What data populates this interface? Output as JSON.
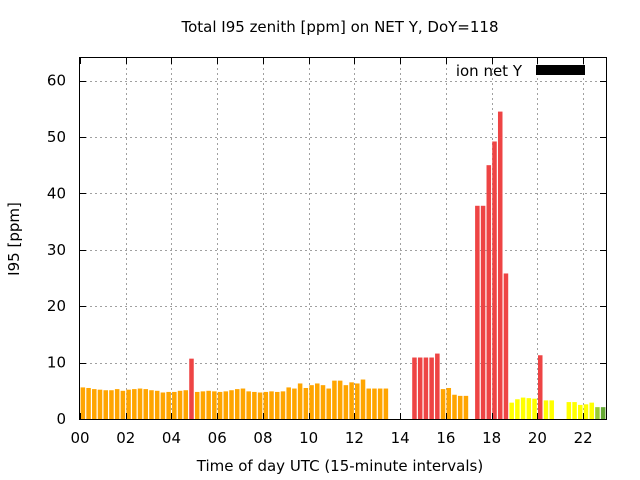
{
  "chart_data": {
    "type": "bar",
    "title": "Total I95 zenith [ppm] on NET Y, DoY=118",
    "xlabel": "Time of day UTC (15-minute intervals)",
    "ylabel": "I95 [ppm]",
    "xlim": [
      0,
      23.0
    ],
    "ylim": [
      0,
      64
    ],
    "xticks": [
      "00",
      "02",
      "04",
      "06",
      "08",
      "10",
      "12",
      "14",
      "16",
      "18",
      "20",
      "22"
    ],
    "yticks": [
      0,
      10,
      20,
      30,
      40,
      50,
      60
    ],
    "grid": true,
    "legend": {
      "position": "top-right",
      "entries": [
        {
          "label": "ion net Y",
          "color": "#000000"
        }
      ]
    },
    "series": [
      {
        "bar_width_hours": 0.25,
        "bars": [
          {
            "t": 0.125,
            "v": 5.6,
            "color": "#ffa500"
          },
          {
            "t": 0.375,
            "v": 5.5,
            "color": "#ffa500"
          },
          {
            "t": 0.625,
            "v": 5.3,
            "color": "#ffa500"
          },
          {
            "t": 0.875,
            "v": 5.2,
            "color": "#ffa500"
          },
          {
            "t": 1.125,
            "v": 5.1,
            "color": "#ffa500"
          },
          {
            "t": 1.375,
            "v": 5.1,
            "color": "#ffa500"
          },
          {
            "t": 1.625,
            "v": 5.3,
            "color": "#ffa500"
          },
          {
            "t": 1.875,
            "v": 5.0,
            "color": "#ffa500"
          },
          {
            "t": 2.125,
            "v": 5.2,
            "color": "#ffa500"
          },
          {
            "t": 2.375,
            "v": 5.3,
            "color": "#ffa500"
          },
          {
            "t": 2.625,
            "v": 5.4,
            "color": "#ffa500"
          },
          {
            "t": 2.875,
            "v": 5.3,
            "color": "#ffa500"
          },
          {
            "t": 3.125,
            "v": 5.1,
            "color": "#ffa500"
          },
          {
            "t": 3.375,
            "v": 5.0,
            "color": "#ffa500"
          },
          {
            "t": 3.625,
            "v": 4.7,
            "color": "#ffa500"
          },
          {
            "t": 3.875,
            "v": 4.8,
            "color": "#ffa500"
          },
          {
            "t": 4.125,
            "v": 4.8,
            "color": "#ffa500"
          },
          {
            "t": 4.375,
            "v": 5.0,
            "color": "#ffa500"
          },
          {
            "t": 4.625,
            "v": 5.1,
            "color": "#ffa500"
          },
          {
            "t": 4.875,
            "v": 10.7,
            "color": "#ee4444"
          },
          {
            "t": 5.125,
            "v": 4.8,
            "color": "#ffa500"
          },
          {
            "t": 5.375,
            "v": 4.9,
            "color": "#ffa500"
          },
          {
            "t": 5.625,
            "v": 5.0,
            "color": "#ffa500"
          },
          {
            "t": 5.875,
            "v": 4.9,
            "color": "#ffa500"
          },
          {
            "t": 6.125,
            "v": 4.8,
            "color": "#ffa500"
          },
          {
            "t": 6.375,
            "v": 4.9,
            "color": "#ffa500"
          },
          {
            "t": 6.625,
            "v": 5.1,
            "color": "#ffa500"
          },
          {
            "t": 6.875,
            "v": 5.3,
            "color": "#ffa500"
          },
          {
            "t": 7.125,
            "v": 5.4,
            "color": "#ffa500"
          },
          {
            "t": 7.375,
            "v": 4.9,
            "color": "#ffa500"
          },
          {
            "t": 7.625,
            "v": 4.8,
            "color": "#ffa500"
          },
          {
            "t": 7.875,
            "v": 4.7,
            "color": "#ffa500"
          },
          {
            "t": 8.125,
            "v": 4.8,
            "color": "#ffa500"
          },
          {
            "t": 8.375,
            "v": 4.9,
            "color": "#ffa500"
          },
          {
            "t": 8.625,
            "v": 4.8,
            "color": "#ffa500"
          },
          {
            "t": 8.875,
            "v": 4.9,
            "color": "#ffa500"
          },
          {
            "t": 9.125,
            "v": 5.6,
            "color": "#ffa500"
          },
          {
            "t": 9.375,
            "v": 5.4,
            "color": "#ffa500"
          },
          {
            "t": 9.625,
            "v": 6.3,
            "color": "#ffa500"
          },
          {
            "t": 9.875,
            "v": 5.5,
            "color": "#ffa500"
          },
          {
            "t": 10.125,
            "v": 6.0,
            "color": "#ffa500"
          },
          {
            "t": 10.375,
            "v": 6.3,
            "color": "#ffa500"
          },
          {
            "t": 10.625,
            "v": 6.0,
            "color": "#ffa500"
          },
          {
            "t": 10.875,
            "v": 5.4,
            "color": "#ffa500"
          },
          {
            "t": 11.125,
            "v": 6.8,
            "color": "#ffa500"
          },
          {
            "t": 11.375,
            "v": 6.8,
            "color": "#ffa500"
          },
          {
            "t": 11.625,
            "v": 6.0,
            "color": "#ffa500"
          },
          {
            "t": 11.875,
            "v": 6.5,
            "color": "#ffa500"
          },
          {
            "t": 12.125,
            "v": 6.3,
            "color": "#ffa500"
          },
          {
            "t": 12.375,
            "v": 7.0,
            "color": "#ffa500"
          },
          {
            "t": 12.625,
            "v": 5.4,
            "color": "#ffa500"
          },
          {
            "t": 12.875,
            "v": 5.4,
            "color": "#ffa500"
          },
          {
            "t": 13.125,
            "v": 5.4,
            "color": "#ffa500"
          },
          {
            "t": 13.375,
            "v": 5.4,
            "color": "#ffa500"
          },
          {
            "t": 14.625,
            "v": 10.9,
            "color": "#ee4444"
          },
          {
            "t": 14.875,
            "v": 10.9,
            "color": "#ee4444"
          },
          {
            "t": 15.125,
            "v": 10.9,
            "color": "#ee4444"
          },
          {
            "t": 15.375,
            "v": 10.9,
            "color": "#ee4444"
          },
          {
            "t": 15.625,
            "v": 11.6,
            "color": "#ee4444"
          },
          {
            "t": 15.875,
            "v": 5.3,
            "color": "#ffa500"
          },
          {
            "t": 16.125,
            "v": 5.5,
            "color": "#ffa500"
          },
          {
            "t": 16.375,
            "v": 4.3,
            "color": "#ffa500"
          },
          {
            "t": 16.625,
            "v": 4.1,
            "color": "#ffa500"
          },
          {
            "t": 16.875,
            "v": 4.1,
            "color": "#ffa500"
          },
          {
            "t": 17.375,
            "v": 37.8,
            "color": "#ee4444"
          },
          {
            "t": 17.625,
            "v": 37.8,
            "color": "#ee4444"
          },
          {
            "t": 17.875,
            "v": 45.0,
            "color": "#ee4444"
          },
          {
            "t": 18.125,
            "v": 49.2,
            "color": "#ee4444"
          },
          {
            "t": 18.375,
            "v": 54.5,
            "color": "#ee4444"
          },
          {
            "t": 18.625,
            "v": 25.8,
            "color": "#ee4444"
          },
          {
            "t": 18.875,
            "v": 2.9,
            "color": "#ffff00"
          },
          {
            "t": 19.125,
            "v": 3.5,
            "color": "#ffff00"
          },
          {
            "t": 19.375,
            "v": 3.8,
            "color": "#ffff00"
          },
          {
            "t": 19.625,
            "v": 3.7,
            "color": "#ffff00"
          },
          {
            "t": 19.875,
            "v": 3.6,
            "color": "#ffff00"
          },
          {
            "t": 20.125,
            "v": 11.3,
            "color": "#ee4444"
          },
          {
            "t": 20.375,
            "v": 3.3,
            "color": "#ffff00"
          },
          {
            "t": 20.625,
            "v": 3.3,
            "color": "#ffff00"
          },
          {
            "t": 21.375,
            "v": 3.0,
            "color": "#ffff00"
          },
          {
            "t": 21.625,
            "v": 3.0,
            "color": "#ffff00"
          },
          {
            "t": 21.875,
            "v": 2.5,
            "color": "#ffff00"
          },
          {
            "t": 22.125,
            "v": 2.6,
            "color": "#ffff00"
          },
          {
            "t": 22.375,
            "v": 2.9,
            "color": "#ffff00"
          },
          {
            "t": 22.625,
            "v": 2.1,
            "color": "#99cc33"
          },
          {
            "t": 22.875,
            "v": 2.1,
            "color": "#66aa33"
          }
        ]
      }
    ]
  }
}
